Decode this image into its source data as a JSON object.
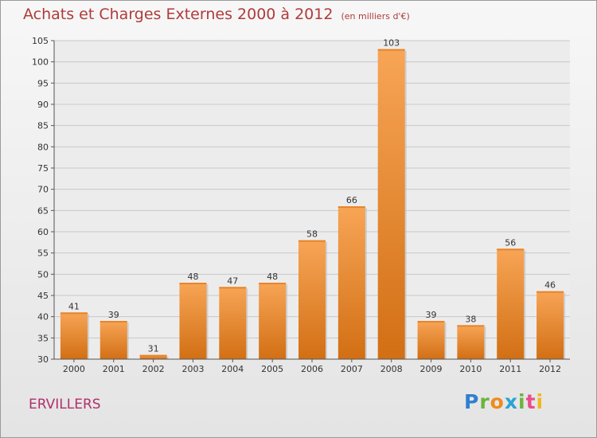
{
  "header": {
    "title": "Achats et Charges Externes 2000 à 2012",
    "unit": "(en milliers d'€)"
  },
  "footer": {
    "commune": "ERVILLERS",
    "brand_letters": [
      "P",
      "r",
      "o",
      "x",
      "i",
      "t",
      "i"
    ]
  },
  "colors": {
    "bar_top": "#f7a556",
    "bar_bottom": "#d26f14",
    "title": "#b03a3a",
    "commune": "#b0306a"
  },
  "chart_data": {
    "type": "bar",
    "title": "Achats et Charges Externes 2000 à 2012",
    "subtitle": "(en milliers d'€)",
    "xlabel": "",
    "ylabel": "",
    "categories": [
      "2000",
      "2001",
      "2002",
      "2003",
      "2004",
      "2005",
      "2006",
      "2007",
      "2008",
      "2009",
      "2010",
      "2011",
      "2012"
    ],
    "values": [
      41,
      39,
      31,
      48,
      47,
      48,
      58,
      66,
      103,
      39,
      38,
      56,
      46
    ],
    "ylim": [
      30,
      105
    ],
    "yticks": [
      30,
      35,
      40,
      45,
      50,
      55,
      60,
      65,
      70,
      75,
      80,
      85,
      90,
      95,
      100,
      105
    ],
    "grid": true,
    "data_labels": true
  }
}
